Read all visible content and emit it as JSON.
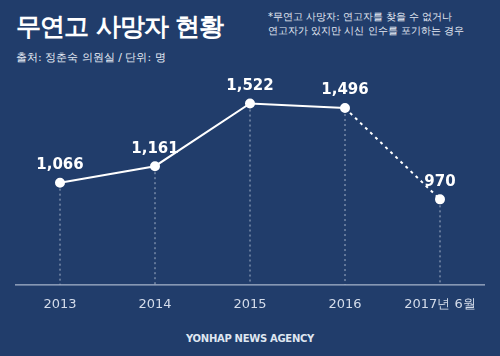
{
  "chart_data": {
    "type": "line",
    "title": "무연고 사망자 현황",
    "note": [
      "*무연고 사망자: 연고자를 찾을 수 없거나",
      "연고자가 있지만 시신 인수를 포기하는 경우"
    ],
    "source": "출처: 정춘숙 의원실 / 단위: 명",
    "credit": "YONHAP NEWS AGENCY",
    "categories": [
      "2013",
      "2014",
      "2015",
      "2016",
      "2017년 6월"
    ],
    "values": [
      1066,
      1161,
      1522,
      1496,
      970
    ],
    "value_labels": [
      "1,066",
      "1,161",
      "1,522",
      "1,496",
      "970"
    ],
    "color": "#ffffff",
    "ylim": [
      480,
      1600
    ],
    "grid": false,
    "data_labels": true,
    "tick_labels": "x",
    "marker": "circle"
  }
}
